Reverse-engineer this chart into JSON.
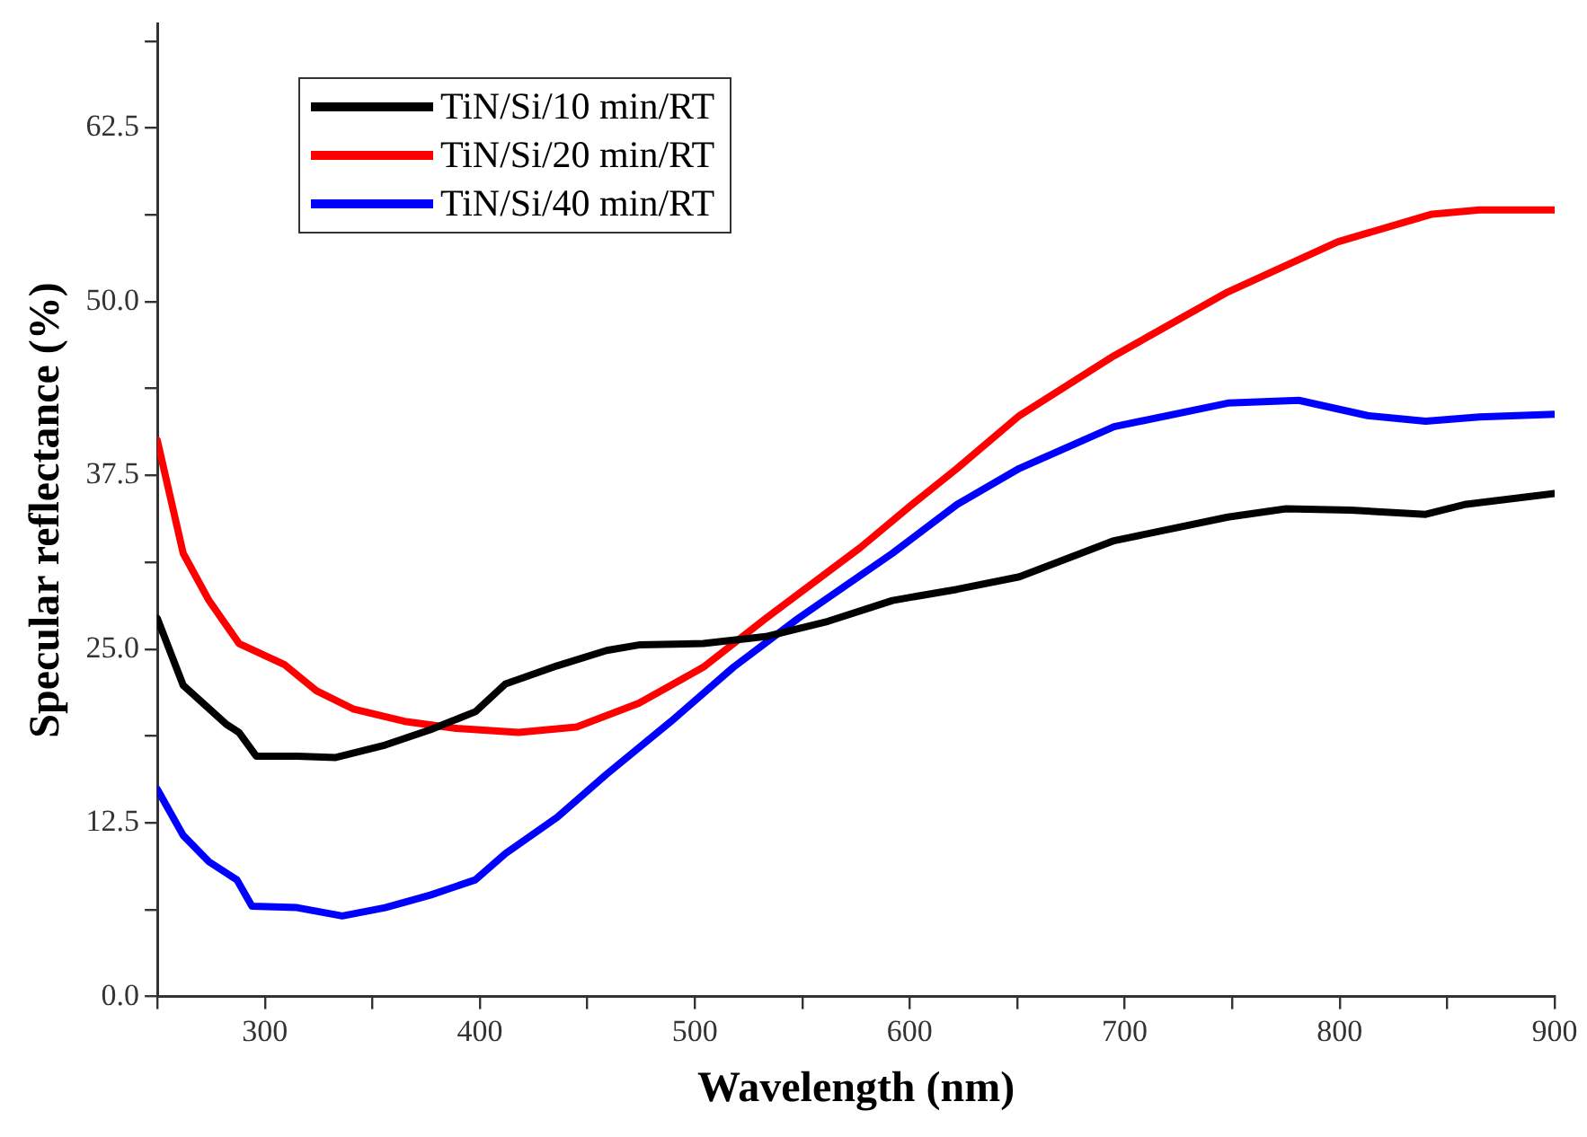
{
  "chart_data": {
    "type": "line",
    "xlabel": "Wavelength (nm)",
    "ylabel": "Specular reflectance (%)",
    "xlim": [
      250,
      900
    ],
    "ylim": [
      0,
      70
    ],
    "xticks": [
      {
        "value": 250,
        "label": null
      },
      300,
      {
        "value": 350,
        "label": null
      },
      400,
      {
        "value": 450,
        "label": null
      },
      500,
      {
        "value": 550,
        "label": null
      },
      600,
      {
        "value": 650,
        "label": null
      },
      700,
      {
        "value": 750,
        "label": null
      },
      800,
      {
        "value": 850,
        "label": null
      },
      900
    ],
    "yticks": [
      {
        "value": 0,
        "label": "0.0"
      },
      {
        "value": 6.25,
        "label": null
      },
      {
        "value": 12.5,
        "label": "12.5"
      },
      {
        "value": 18.75,
        "label": null
      },
      {
        "value": 25,
        "label": "25.0"
      },
      {
        "value": 31.25,
        "label": null
      },
      {
        "value": 37.5,
        "label": "37.5"
      },
      {
        "value": 43.75,
        "label": null
      },
      {
        "value": 50,
        "label": "50.0"
      },
      {
        "value": 56.25,
        "label": null
      },
      {
        "value": 62.5,
        "label": "62.5"
      },
      {
        "value": 68.75,
        "label": null
      }
    ],
    "grid": false,
    "legend": "top left",
    "marker": "none",
    "line_style": "solid",
    "series": [
      {
        "name": "TiN/Si/10 min/RT",
        "color": "#000000",
        "x": [
          250,
          262,
          282,
          288,
          296,
          315,
          333,
          356,
          377,
          398,
          412,
          436,
          459,
          474,
          504,
          533,
          562,
          592,
          622,
          651,
          695,
          748,
          775,
          805,
          840,
          858,
          900
        ],
        "values": [
          27.2,
          22.4,
          19.6,
          19.0,
          17.3,
          17.3,
          17.2,
          18.1,
          19.2,
          20.5,
          22.5,
          23.8,
          24.9,
          25.3,
          25.4,
          25.9,
          27.0,
          28.5,
          29.3,
          30.2,
          32.8,
          34.5,
          35.1,
          35.0,
          34.7,
          35.4,
          36.2
        ]
      },
      {
        "name": "TiN/Si/20 min/RT",
        "color": "#ff0000",
        "x": [
          250,
          262,
          274,
          288,
          309,
          324,
          341,
          365,
          389,
          418,
          445,
          474,
          504,
          533,
          577,
          601,
          622,
          651,
          695,
          748,
          799,
          843,
          865,
          900
        ],
        "values": [
          40.0,
          31.9,
          28.5,
          25.4,
          23.9,
          22.0,
          20.7,
          19.8,
          19.3,
          19.0,
          19.4,
          21.1,
          23.7,
          27.2,
          32.3,
          35.4,
          38.0,
          41.8,
          46.1,
          50.7,
          54.3,
          56.3,
          56.6,
          56.6
        ]
      },
      {
        "name": "TiN/Si/40 min/RT",
        "color": "#0000ff",
        "x": [
          250,
          262,
          274,
          287,
          294,
          315,
          336,
          356,
          377,
          398,
          412,
          436,
          459,
          489,
          518,
          548,
          592,
          622,
          651,
          695,
          748,
          781,
          813,
          840,
          865,
          900
        ],
        "values": [
          14.9,
          11.6,
          9.7,
          8.4,
          6.5,
          6.4,
          5.8,
          6.4,
          7.3,
          8.4,
          10.3,
          12.9,
          16.0,
          19.8,
          23.7,
          27.2,
          31.9,
          35.4,
          38.0,
          41.0,
          42.7,
          42.9,
          41.8,
          41.4,
          41.7,
          41.9
        ]
      }
    ]
  }
}
